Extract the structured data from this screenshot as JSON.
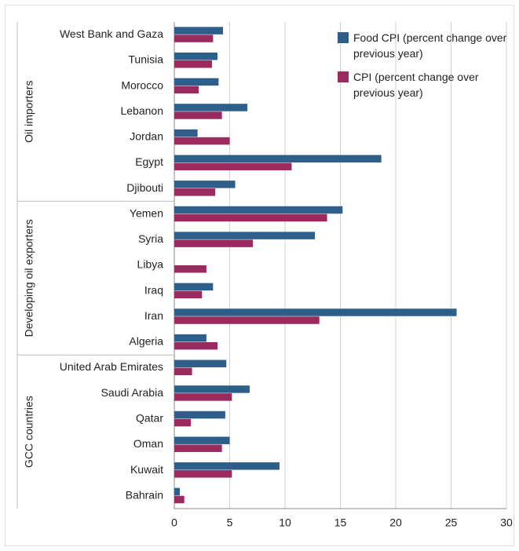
{
  "chart_data": {
    "type": "hbar",
    "groups": [
      {
        "name": "Oil importers",
        "categories": [
          "West Bank and Gaza",
          "Tunisia",
          "Morocco",
          "Lebanon",
          "Jordan",
          "Egypt",
          "Djibouti"
        ]
      },
      {
        "name": "Developing oil exporters",
        "categories": [
          "Yemen",
          "Syria",
          "Libya",
          "Iraq",
          "Iran",
          "Algeria"
        ]
      },
      {
        "name": "GCC countries",
        "categories": [
          "United Arab Emirates",
          "Saudi Arabia",
          "Qatar",
          "Oman",
          "Kuwait",
          "Bahrain"
        ]
      }
    ],
    "series": [
      {
        "name": "Food CPI (percent change over previous year)",
        "color": "#2e5f8a",
        "values": [
          4.4,
          3.9,
          4.0,
          6.6,
          2.1,
          18.7,
          5.5,
          15.2,
          12.7,
          null,
          3.5,
          25.5,
          2.9,
          4.7,
          6.8,
          4.6,
          5.0,
          9.5,
          0.5
        ]
      },
      {
        "name": "CPI (percent change over previous year)",
        "color": "#9b2a5e",
        "values": [
          3.5,
          3.4,
          2.2,
          4.3,
          5.0,
          10.6,
          3.7,
          13.8,
          7.1,
          2.9,
          2.5,
          13.1,
          3.9,
          1.6,
          5.2,
          1.5,
          4.3,
          5.2,
          0.9
        ]
      }
    ],
    "xlim": [
      0,
      30
    ],
    "xticks": [
      0,
      5,
      10,
      15,
      20,
      25,
      30
    ],
    "grid": true
  }
}
